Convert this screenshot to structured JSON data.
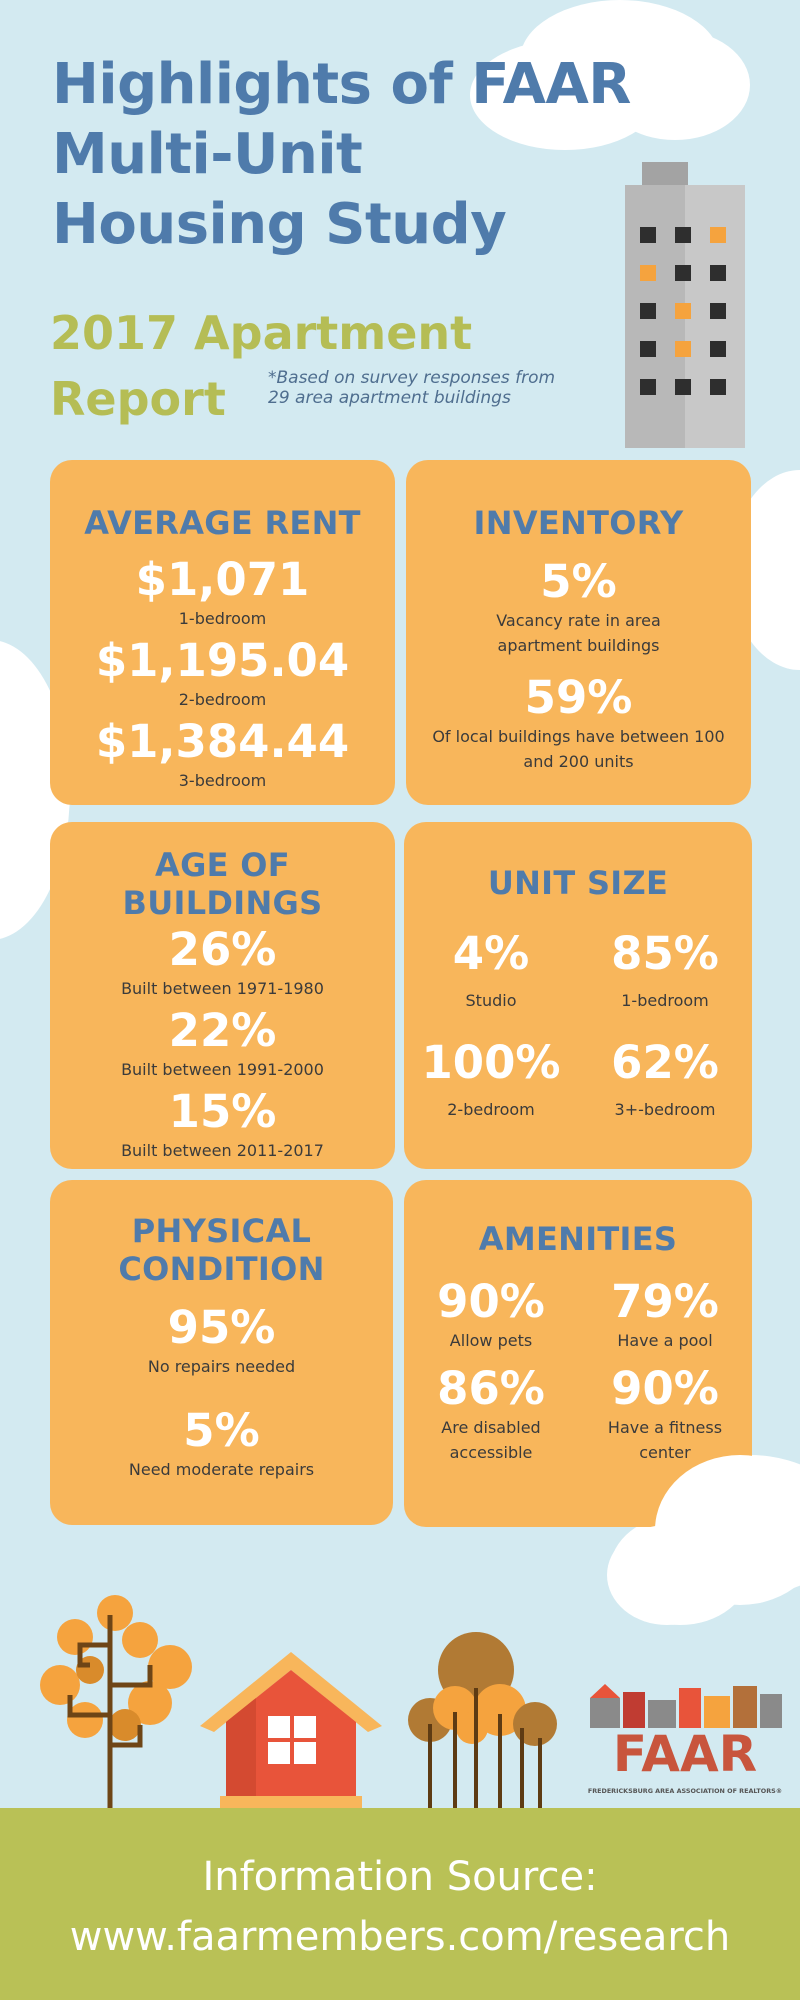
{
  "header": {
    "title_line1": "Highlights of FAAR",
    "title_line2": "Multi-Unit",
    "title_line3": "Housing Study",
    "subtitle_line1": "2017 Apartment",
    "subtitle_line2": "Report",
    "note": "*Based on survey responses from 29 area apartment buildings"
  },
  "average_rent": {
    "heading": "AVERAGE RENT",
    "items": [
      {
        "value": "$1,071",
        "label": "1-bedroom"
      },
      {
        "value": "$1,195.04",
        "label": "2-bedroom"
      },
      {
        "value": "$1,384.44",
        "label": "3-bedroom"
      }
    ]
  },
  "inventory": {
    "heading": "INVENTORY",
    "items": [
      {
        "value": "5%",
        "label": "Vacancy rate in area apartment buildings"
      },
      {
        "value": "59%",
        "label": "Of local buildings have between 100 and 200 units"
      }
    ]
  },
  "age_of_buildings": {
    "heading_line1": "AGE OF",
    "heading_line2": "BUILDINGS",
    "items": [
      {
        "value": "26%",
        "label": "Built between 1971-1980"
      },
      {
        "value": "22%",
        "label": "Built between 1991-2000"
      },
      {
        "value": "15%",
        "label": "Built between 2011-2017"
      }
    ]
  },
  "unit_size": {
    "heading": "UNIT SIZE",
    "items": [
      {
        "value": "4%",
        "label": "Studio"
      },
      {
        "value": "85%",
        "label": "1-bedroom"
      },
      {
        "value": "100%",
        "label": "2-bedroom"
      },
      {
        "value": "62%",
        "label": "3+-bedroom"
      }
    ]
  },
  "physical_condition": {
    "heading_line1": "PHYSICAL",
    "heading_line2": "CONDITION",
    "items": [
      {
        "value": "95%",
        "label": "No repairs needed"
      },
      {
        "value": "5%",
        "label": "Need moderate repairs"
      }
    ]
  },
  "amenities": {
    "heading": "AMENITIES",
    "items": [
      {
        "value": "90%",
        "label": "Allow pets"
      },
      {
        "value": "79%",
        "label": "Have a pool"
      },
      {
        "value": "86%",
        "label": "Are disabled accessible"
      },
      {
        "value": "90%",
        "label": "Have a fitness center"
      }
    ]
  },
  "logo": {
    "name": "FAAR",
    "tagline": "FREDERICKSBURG AREA ASSOCIATION OF REALTORS®"
  },
  "footer": {
    "line1": "Information Source:",
    "line2": "www.faarmembers.com/research"
  },
  "colors": {
    "background": "#d3eaf1",
    "title_blue": "#4f7bab",
    "subtitle_green": "#b5bd55",
    "card_orange": "#f8b65b",
    "footer_green": "#b9c156",
    "house_red": "#e8543a"
  }
}
